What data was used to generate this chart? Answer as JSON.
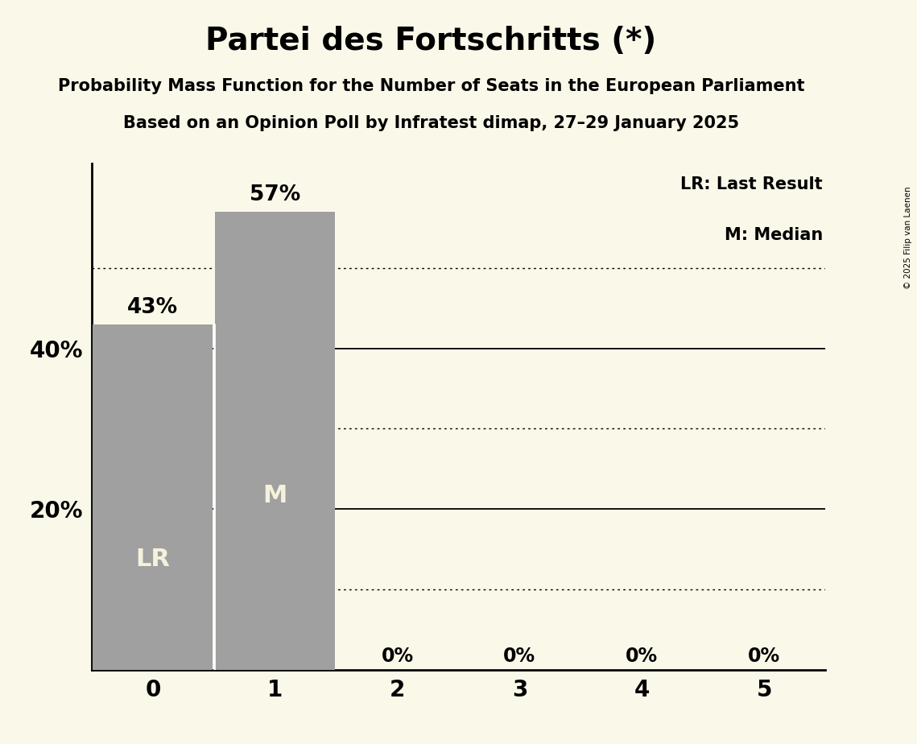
{
  "title": "Partei des Fortschritts (*)",
  "subtitle1": "Probability Mass Function for the Number of Seats in the European Parliament",
  "subtitle2": "Based on an Opinion Poll by Infratest dimap, 27–29 January 2025",
  "copyright": "© 2025 Filip van Laenen",
  "categories": [
    0,
    1,
    2,
    3,
    4,
    5
  ],
  "values": [
    0.43,
    0.57,
    0.0,
    0.0,
    0.0,
    0.0
  ],
  "bar_color": "#A0A0A0",
  "background_color": "#FAF8E8",
  "bar_labels": [
    "43%",
    "57%",
    "0%",
    "0%",
    "0%",
    "0%"
  ],
  "bar_inner_labels": [
    "LR",
    "M",
    "",
    "",
    "",
    ""
  ],
  "solid_grid_lines": [
    0.2,
    0.4
  ],
  "dotted_grid_lines": [
    0.1,
    0.3,
    0.5
  ],
  "ylim_max": 0.63,
  "title_fontsize": 28,
  "subtitle_fontsize": 15,
  "axis_label_fontsize": 20,
  "bar_label_fontsize": 19,
  "inner_label_fontsize": 22,
  "legend_text1": "LR: Last Result",
  "legend_text2": "M: Median",
  "legend_fontsize": 15
}
